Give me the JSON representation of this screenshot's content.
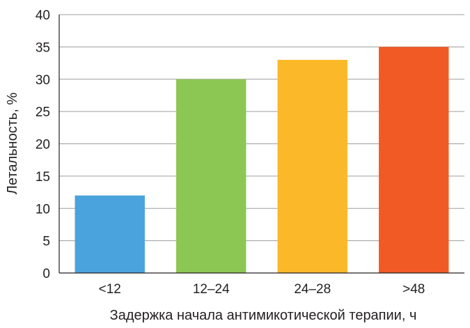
{
  "chart_data": {
    "type": "bar",
    "categories": [
      "<12",
      "12–24",
      "24–28",
      ">48"
    ],
    "values": [
      12,
      30,
      33,
      35
    ],
    "colors": [
      "#4aa3dc",
      "#8dc753",
      "#fbb829",
      "#f15a24"
    ],
    "title": "",
    "xlabel": "Задержка начала антимикотической терапии, ч",
    "ylabel": "Летальность, %",
    "ylim": [
      0,
      40
    ],
    "yticks": [
      "0",
      "5",
      "10",
      "15",
      "20",
      "25",
      "30",
      "35",
      "40"
    ],
    "grid": true,
    "legend": "none"
  }
}
